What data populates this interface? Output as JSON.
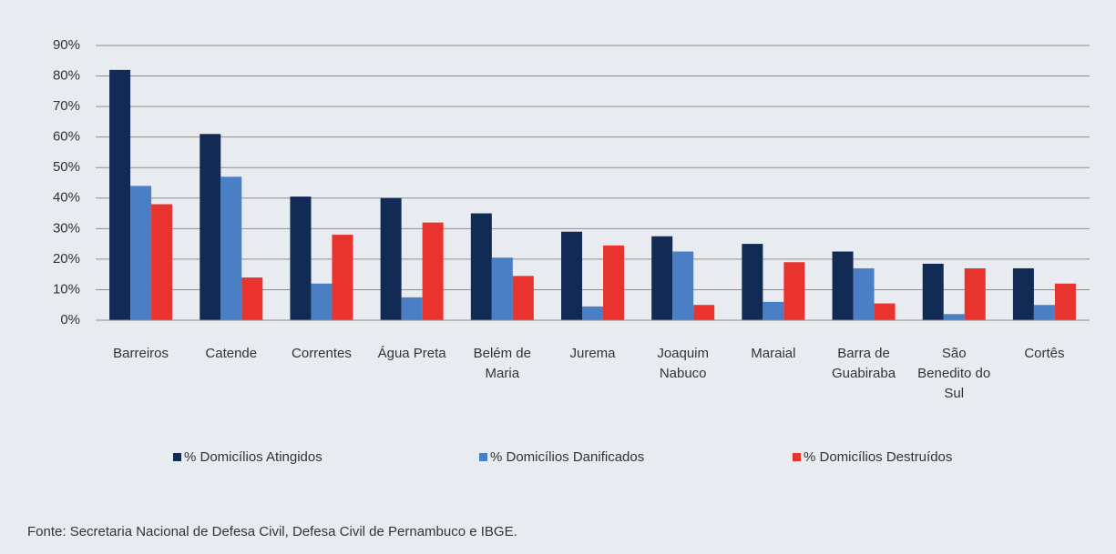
{
  "chart_data": {
    "type": "bar",
    "categories": [
      "Barreiros",
      "Catende",
      "Correntes",
      "Água Preta",
      "Belém de Maria",
      "Jurema",
      "Joaquim Nabuco",
      "Maraial",
      "Barra de Guabiraba",
      "São Benedito do Sul",
      "Cortês"
    ],
    "series": [
      {
        "name": "% Domicílios Atingidos",
        "color": "#112b55",
        "values": [
          82,
          61,
          40.5,
          40,
          35,
          29,
          27.5,
          25,
          22.5,
          18.5,
          17
        ]
      },
      {
        "name": "% Domicílios Danificados",
        "color": "#4a7fc6",
        "values": [
          44,
          47,
          12,
          7.5,
          20.5,
          4.5,
          22.5,
          6,
          17,
          2,
          5
        ]
      },
      {
        "name": "% Domicílios Destruídos",
        "color": "#e8332e",
        "values": [
          38,
          14,
          28,
          32,
          14.5,
          24.5,
          5,
          19,
          5.5,
          17,
          12
        ]
      }
    ],
    "ylim": [
      0,
      90
    ],
    "yticks": [
      {
        "value": 0,
        "label": "0%"
      },
      {
        "value": 10,
        "label": "10%"
      },
      {
        "value": 20,
        "label": "20%"
      },
      {
        "value": 30,
        "label": "30%"
      },
      {
        "value": 40,
        "label": "40%"
      },
      {
        "value": 50,
        "label": "50%"
      },
      {
        "value": 60,
        "label": "60%"
      },
      {
        "value": 70,
        "label": "70%"
      },
      {
        "value": 80,
        "label": "80%"
      },
      {
        "value": 90,
        "label": "90%"
      }
    ],
    "grid": true,
    "legend": "bottom",
    "source": "Fonte:  Secretaria Nacional de Defesa Civil, Defesa Civil de Pernambuco e IBGE."
  }
}
